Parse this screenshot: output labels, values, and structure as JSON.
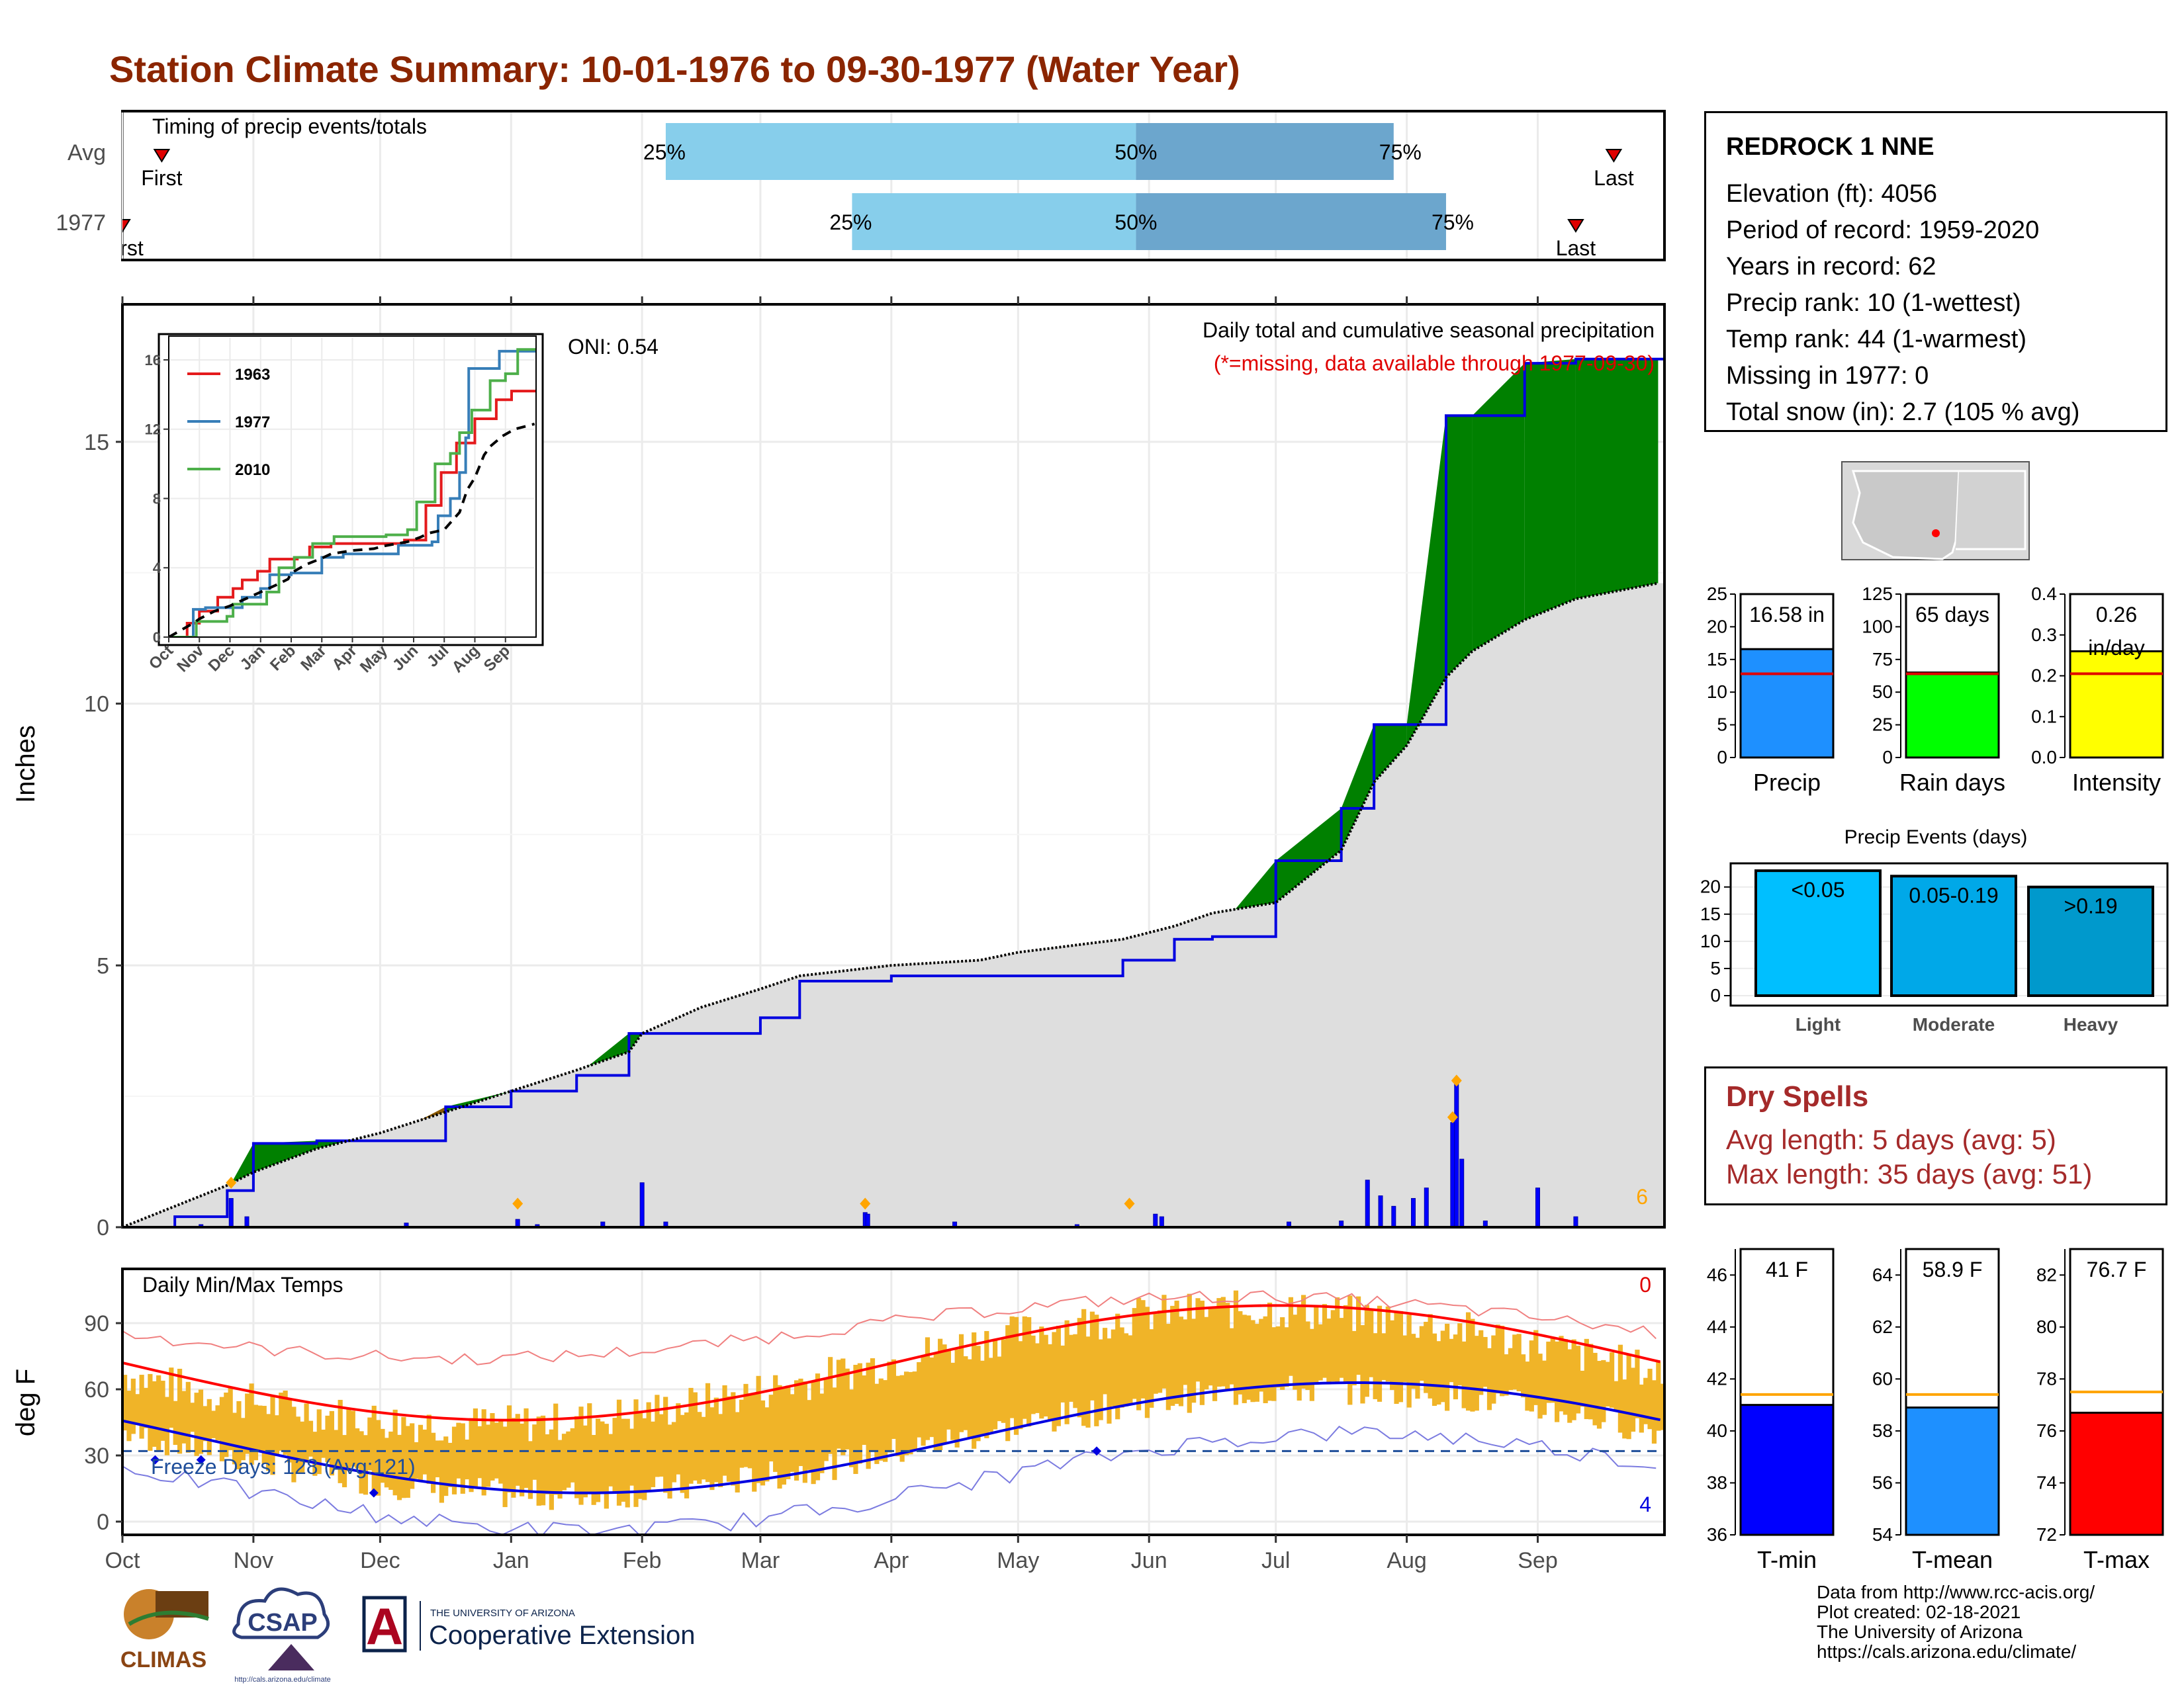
{
  "title": "Station Climate Summary: 10-01-1976 to 09-30-1977 (Water Year)",
  "station": {
    "name": "REDROCK 1 NNE",
    "lines": [
      "Elevation (ft): 4056",
      "Period of record: 1959-2020",
      "Years in record: 62",
      "Precip rank: 10 (1-wettest)",
      "Temp rank: 44 (1-warmest)",
      "Missing in 1977: 0",
      "Total snow (in): 2.7 (105 % avg)"
    ]
  },
  "months": [
    "Oct",
    "Nov",
    "Dec",
    "Jan",
    "Feb",
    "Mar",
    "Apr",
    "May",
    "Jun",
    "Jul",
    "Aug",
    "Sep"
  ],
  "timing": {
    "label": "Timing of precip events/totals",
    "rows": [
      "Avg",
      "1977"
    ],
    "first_label": "First",
    "first_label_clipped": "rst",
    "last_label": "Last",
    "pct_labels": [
      "25%",
      "50%",
      "75%"
    ]
  },
  "main_panel": {
    "ylabel": "Inches",
    "oni": "ONI: 0.54",
    "subtitle": "Daily total and cumulative seasonal precipitation",
    "missing_note": "(*=missing, data available through 1977-09-30)",
    "corner_count": "6",
    "y_ticks": [
      "0",
      "5",
      "10",
      "15"
    ]
  },
  "inset": {
    "legend": [
      "1963",
      "1977",
      "2010"
    ],
    "colors": [
      "#E41A1C",
      "#377EB8",
      "#4DAF4A"
    ],
    "y_ticks": [
      "0",
      "4",
      "8",
      "12",
      "16"
    ],
    "x_ticks": [
      "Oct",
      "Nov",
      "Dec",
      "Jan",
      "Feb",
      "Mar",
      "Apr",
      "May",
      "Jun",
      "Jul",
      "Aug",
      "Sep"
    ]
  },
  "temp_panel": {
    "ylabel": "deg F",
    "label": "Daily Min/Max Temps",
    "freeze": "Freeze Days: 128 (Avg:121)",
    "top_count": "0",
    "bottom_count": "4",
    "y_ticks": [
      "0",
      "30",
      "60",
      "90"
    ]
  },
  "events_panel": {
    "title": "Precip Events (days)",
    "y_ticks": [
      "0",
      "5",
      "10",
      "15",
      "20"
    ]
  },
  "dry_spells": {
    "title": "Dry Spells",
    "avg": "Avg length: 5 days (avg: 5)",
    "max": "Max length: 35 days (avg: 51)"
  },
  "credits": [
    "Data from http://www.rcc-acis.org/",
    "Plot created: 02-18-2021",
    "The University of Arizona",
    "https://cals.arizona.edu/climate/"
  ],
  "logos": {
    "climas": "CLIMAS",
    "csap": "CSAP",
    "csap_url": "http://cals.arizona.edu/climate",
    "ua_small": "THE UNIVERSITY OF ARIZONA",
    "ua_big": "Cooperative Extension",
    "ua_letter": "A"
  },
  "chart_data": [
    {
      "type": "bar",
      "name": "timing",
      "rows": [
        "Avg",
        "1977"
      ],
      "first_month": [
        0.3,
        0.0
      ],
      "last_month": [
        11.6,
        11.3
      ],
      "p25_month": [
        4.2,
        5.7
      ],
      "p50_month": [
        7.9,
        7.9
      ],
      "p75_month": [
        9.9,
        10.3
      ]
    },
    {
      "type": "area",
      "name": "cumulative_precip",
      "xlabel": "",
      "ylabel": "Inches",
      "ylim": [
        0,
        17.5
      ],
      "x": [
        0,
        0.4,
        0.8,
        1.0,
        1.5,
        2.0,
        2.5,
        3.0,
        3.5,
        3.9,
        4.0,
        4.5,
        5.0,
        5.3,
        6.0,
        6.7,
        7.0,
        7.8,
        8.2,
        8.5,
        9.0,
        9.5,
        9.75,
        10.0,
        10.3,
        10.5,
        10.9,
        11.3,
        11.95
      ],
      "series": [
        {
          "name": "",
          "values": [
            0,
            0.2,
            0.7,
            1.6,
            1.65,
            1.65,
            2.3,
            2.6,
            2.9,
            3.7,
            3.7,
            3.7,
            4.0,
            4.7,
            4.8,
            4.8,
            4.8,
            5.1,
            5.5,
            5.55,
            7.0,
            8.0,
            9.6,
            9.6,
            15.5,
            15.5,
            16.5,
            16.58,
            16.58
          ]
        },
        {
          "name": "",
          "values": [
            0,
            0.4,
            0.8,
            1.05,
            1.5,
            1.8,
            2.2,
            2.6,
            3.0,
            3.35,
            3.7,
            4.2,
            4.55,
            4.8,
            5.0,
            5.1,
            5.25,
            5.5,
            5.75,
            6.0,
            6.2,
            7.2,
            8.5,
            9.2,
            10.5,
            11.0,
            11.6,
            12.0,
            12.3
          ]
        }
      ]
    },
    {
      "type": "bar",
      "name": "summary_bars",
      "categories": [
        "Precip",
        "Rain days",
        "Intensity"
      ],
      "values": [
        16.58,
        65,
        0.26
      ],
      "labels": [
        "16.58 in",
        "65 days",
        "0.26 in/day"
      ],
      "averages": [
        12.8,
        64,
        0.205
      ],
      "ylims": [
        [
          0,
          25
        ],
        [
          0,
          125
        ],
        [
          0,
          0.4
        ]
      ],
      "y_ticks": [
        [
          "0",
          "5",
          "10",
          "15",
          "20",
          "25"
        ],
        [
          "0",
          "25",
          "50",
          "75",
          "100",
          "125"
        ],
        [
          "0.0",
          "0.1",
          "0.2",
          "0.3",
          "0.4"
        ]
      ],
      "colors": [
        "#1E90FF",
        "#00FF00",
        "#FFFF00"
      ]
    },
    {
      "type": "bar",
      "name": "precip_events",
      "categories": [
        "Light",
        "Moderate",
        "Heavy"
      ],
      "values": [
        23,
        22,
        20
      ],
      "labels": [
        "<0.05",
        "0.05-0.19",
        ">0.19"
      ],
      "ylim": [
        0,
        23.5
      ]
    },
    {
      "type": "bar",
      "name": "temp_bars",
      "categories": [
        "T-min",
        "T-mean",
        "T-max"
      ],
      "values": [
        41,
        58.9,
        76.7
      ],
      "labels": [
        "41 F",
        "58.9 F",
        "76.7 F"
      ],
      "averages": [
        41.4,
        59.4,
        77.5
      ],
      "ylims": [
        [
          36,
          47
        ],
        [
          54,
          65
        ],
        [
          72,
          83
        ]
      ],
      "y_ticks": [
        [
          "36",
          "38",
          "40",
          "42",
          "44",
          "46"
        ],
        [
          "54",
          "56",
          "58",
          "60",
          "62",
          "64"
        ],
        [
          "72",
          "74",
          "76",
          "78",
          "80",
          "82"
        ]
      ],
      "colors": [
        "#0000FF",
        "#1E90FF",
        "#FF0000"
      ]
    }
  ]
}
